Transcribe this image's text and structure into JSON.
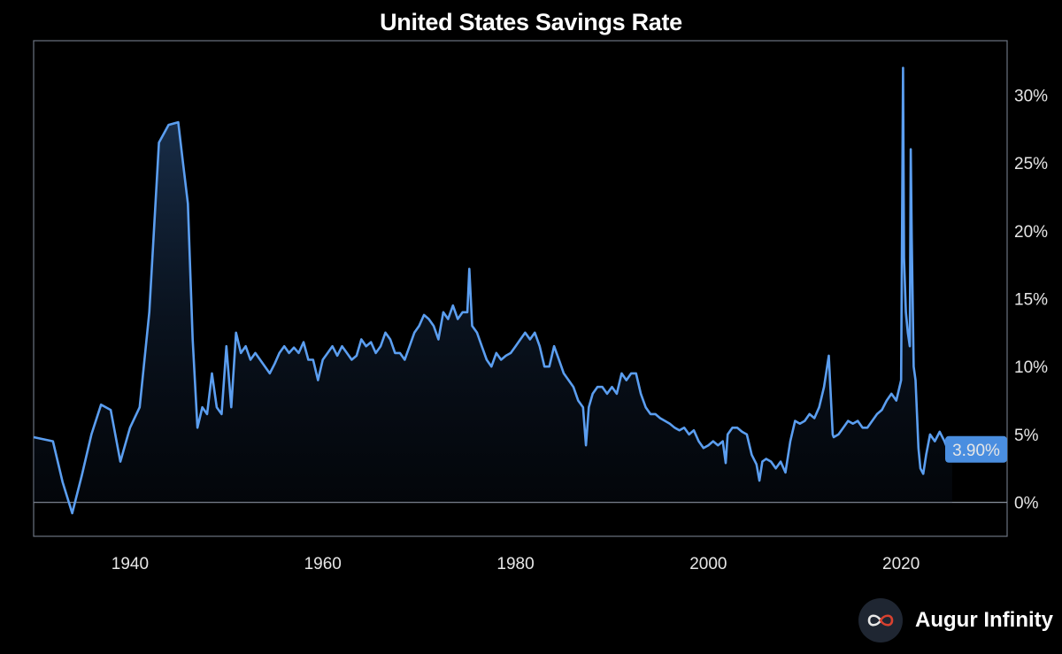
{
  "chart_data": {
    "type": "area",
    "title": "United States Savings Rate",
    "xlabel": "",
    "ylabel": "",
    "xlim": [
      1930,
      2031
    ],
    "ylim": [
      -2.5,
      34
    ],
    "x_ticks": [
      1940,
      1960,
      1980,
      2000,
      2020
    ],
    "y_ticks": [
      0,
      5,
      10,
      15,
      20,
      25,
      30
    ],
    "x_tick_labels": [
      "1940",
      "1960",
      "1980",
      "2000",
      "2020"
    ],
    "y_tick_labels": [
      "0%",
      "5%",
      "10%",
      "15%",
      "20%",
      "25%",
      "30%"
    ],
    "y_axis_side": "right",
    "grid": false,
    "line_color": "#5b9ef0",
    "zero_line_color": "#8a929e",
    "last_value_label": "3.90%",
    "series": [
      {
        "x": [
          1930,
          1932,
          1933,
          1934,
          1935,
          1936,
          1937,
          1938,
          1939,
          1940,
          1941,
          1942,
          1943,
          1944,
          1945,
          1945.5,
          1946,
          1946.5,
          1947,
          1947.5,
          1948,
          1948.5,
          1949,
          1949.5,
          1950,
          1950.5,
          1951,
          1951.5,
          1952,
          1952.5,
          1953,
          1953.5,
          1954,
          1954.5,
          1955,
          1955.5,
          1956,
          1956.5,
          1957,
          1957.5,
          1958,
          1958.5,
          1959,
          1959.5,
          1960,
          1960.5,
          1961,
          1961.5,
          1962,
          1962.5,
          1963,
          1963.5,
          1964,
          1964.5,
          1965,
          1965.5,
          1966,
          1966.5,
          1967,
          1967.5,
          1968,
          1968.5,
          1969,
          1969.5,
          1970,
          1970.5,
          1971,
          1971.5,
          1972,
          1972.5,
          1973,
          1973.5,
          1974,
          1974.5,
          1975,
          1975.2,
          1975.5,
          1976,
          1976.5,
          1977,
          1977.5,
          1978,
          1978.5,
          1979,
          1979.5,
          1980,
          1980.5,
          1981,
          1981.5,
          1982,
          1982.5,
          1983,
          1983.5,
          1984,
          1984.5,
          1985,
          1985.5,
          1986,
          1986.5,
          1987,
          1987.3,
          1987.6,
          1988,
          1988.5,
          1989,
          1989.5,
          1990,
          1990.5,
          1991,
          1991.5,
          1992,
          1992.5,
          1993,
          1993.5,
          1994,
          1994.5,
          1995,
          1995.5,
          1996,
          1996.5,
          1997,
          1997.5,
          1998,
          1998.5,
          1999,
          1999.5,
          2000,
          2000.5,
          2001,
          2001.5,
          2001.8,
          2002,
          2002.5,
          2003,
          2003.5,
          2004,
          2004.5,
          2005,
          2005.3,
          2005.6,
          2006,
          2006.5,
          2007,
          2007.5,
          2008,
          2008.5,
          2009,
          2009.5,
          2010,
          2010.5,
          2011,
          2011.5,
          2012,
          2012.5,
          2012.9,
          2013,
          2013.5,
          2014,
          2014.5,
          2015,
          2015.5,
          2016,
          2016.5,
          2017,
          2017.5,
          2018,
          2018.5,
          2019,
          2019.5,
          2020,
          2020.2,
          2020.3,
          2020.5,
          2020.7,
          2020.9,
          2021,
          2021.1,
          2021.3,
          2021.5,
          2021.8,
          2022,
          2022.3,
          2022.6,
          2023,
          2023.5,
          2024,
          2024.5,
          2025,
          2025.3
        ],
        "y": [
          4.8,
          4.5,
          1.5,
          -0.8,
          2.0,
          5.0,
          7.2,
          6.8,
          3.0,
          5.5,
          7.0,
          14.0,
          26.5,
          27.8,
          28.0,
          25.0,
          22.0,
          12.0,
          5.5,
          7.0,
          6.5,
          9.5,
          7.0,
          6.5,
          11.5,
          7.0,
          12.5,
          11.0,
          11.5,
          10.5,
          11.0,
          10.5,
          10.0,
          9.5,
          10.2,
          11.0,
          11.5,
          11.0,
          11.4,
          11.0,
          11.8,
          10.5,
          10.5,
          9.0,
          10.5,
          11.0,
          11.5,
          10.8,
          11.5,
          11.0,
          10.5,
          10.8,
          12.0,
          11.5,
          11.8,
          11.0,
          11.5,
          12.5,
          12.0,
          11.0,
          11.0,
          10.5,
          11.5,
          12.5,
          13.0,
          13.8,
          13.5,
          13.0,
          12.0,
          14.0,
          13.5,
          14.5,
          13.5,
          14.0,
          14.0,
          17.2,
          13.0,
          12.5,
          11.5,
          10.5,
          10.0,
          11.0,
          10.5,
          10.8,
          11.0,
          11.5,
          12.0,
          12.5,
          12.0,
          12.5,
          11.5,
          10.0,
          10.0,
          11.5,
          10.5,
          9.5,
          9.0,
          8.5,
          7.5,
          7.0,
          4.2,
          7.0,
          8.0,
          8.5,
          8.5,
          8.0,
          8.5,
          8.0,
          9.5,
          9.0,
          9.5,
          9.5,
          8.0,
          7.0,
          6.5,
          6.5,
          6.2,
          6.0,
          5.8,
          5.5,
          5.3,
          5.5,
          5.0,
          5.3,
          4.5,
          4.0,
          4.2,
          4.5,
          4.2,
          4.5,
          2.9,
          5.0,
          5.5,
          5.5,
          5.2,
          5.0,
          3.5,
          2.8,
          1.6,
          3.0,
          3.2,
          3.0,
          2.5,
          3.0,
          2.2,
          4.5,
          6.0,
          5.8,
          6.0,
          6.5,
          6.2,
          7.0,
          8.5,
          10.8,
          5.0,
          4.8,
          5.0,
          5.5,
          6.0,
          5.8,
          6.0,
          5.5,
          5.5,
          6.0,
          6.5,
          6.8,
          7.5,
          8.0,
          7.5,
          9.0,
          32.0,
          18.0,
          14.0,
          12.5,
          11.5,
          26.0,
          19.5,
          10.0,
          9.0,
          4.0,
          2.5,
          2.1,
          3.5,
          5.0,
          4.5,
          5.2,
          4.5,
          3.6,
          3.9
        ]
      }
    ]
  },
  "branding": {
    "name": "Augur Infinity",
    "logo_icon": "infinity-icon"
  }
}
